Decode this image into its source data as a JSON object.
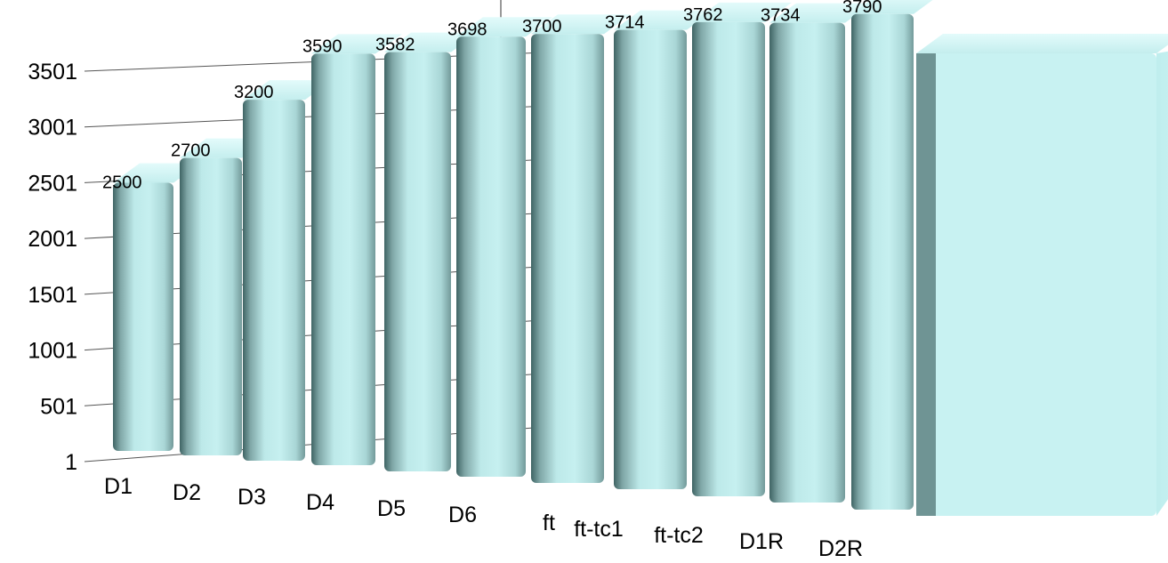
{
  "chart_data": {
    "type": "bar",
    "style": "3d",
    "categories": [
      "D1",
      "D2",
      "D3",
      "D4",
      "D5",
      "D6",
      "ft",
      "ft-tc1",
      "ft-tc2",
      "D1R",
      "D2R",
      ""
    ],
    "values": [
      2500,
      2700,
      3200,
      3590,
      3582,
      3698,
      3700,
      3714,
      3762,
      3734,
      3790,
      3790
    ],
    "value_labels": [
      "2500",
      "2700",
      "3200",
      "3590",
      "3582",
      "3698",
      "3700",
      "3714",
      "3762",
      "3734",
      "3790",
      ""
    ],
    "y_ticks": [
      "1",
      "501",
      "1001",
      "1501",
      "2001",
      "2501",
      "3001",
      "3501"
    ],
    "ylim": [
      1,
      3790
    ],
    "grid": true,
    "bar_color": "#bdecec",
    "bar_shadow_color": "#6a8c8c",
    "title": "",
    "xlabel": "",
    "ylabel": ""
  }
}
